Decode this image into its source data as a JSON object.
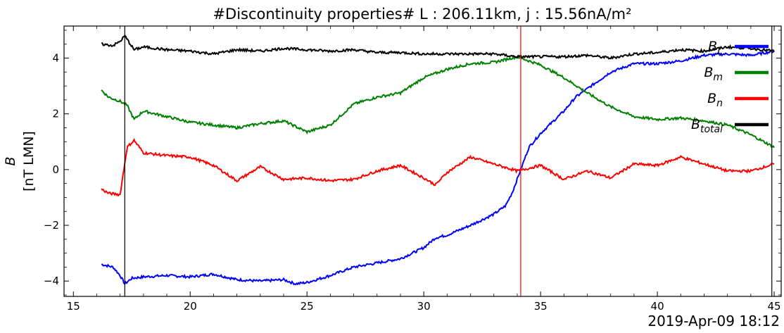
{
  "chart_data": {
    "type": "line",
    "title": "#Discontinuity properties# L : 206.11km, j : 15.56nA/m²",
    "ylabel": "B",
    "ylabel_units": "[nT LMN]",
    "corner_label": "2019-Apr-09 18:12",
    "xlim": [
      14.6,
      45.3
    ],
    "ylim": [
      -4.55,
      5.15
    ],
    "xticks": [
      15,
      20,
      25,
      30,
      35,
      40,
      45
    ],
    "yticks": [
      -4,
      -2,
      0,
      2,
      4
    ],
    "grid": false,
    "legend_position": "top-right",
    "vlines": [
      {
        "x": 17.2,
        "color": "#000000"
      },
      {
        "x": 34.15,
        "color": "#ff0000"
      },
      {
        "x": 44.9,
        "color": "#000000"
      }
    ],
    "series": [
      {
        "name": "B_L",
        "legend_main": "B",
        "legend_sub": "L",
        "color": "#0000ff",
        "x": [
          16.2,
          16.7,
          17.0,
          17.2,
          17.5,
          18.0,
          19.0,
          20.0,
          21.0,
          22.0,
          23.0,
          24.0,
          24.5,
          25.0,
          26.0,
          27.0,
          28.0,
          29.0,
          30.0,
          30.5,
          31.0,
          32.0,
          33.0,
          33.5,
          33.8,
          34.15,
          34.5,
          35.0,
          35.5,
          36.0,
          36.5,
          37.0,
          38.0,
          39.0,
          40.0,
          41.0,
          42.0,
          43.0,
          44.0,
          45.0
        ],
        "y": [
          -3.4,
          -3.5,
          -3.8,
          -4.1,
          -3.9,
          -3.85,
          -3.8,
          -3.85,
          -3.75,
          -3.95,
          -4.0,
          -3.95,
          -4.1,
          -4.05,
          -3.8,
          -3.5,
          -3.35,
          -3.2,
          -2.8,
          -2.45,
          -2.35,
          -2.0,
          -1.6,
          -1.3,
          -0.8,
          0.0,
          0.8,
          1.3,
          1.7,
          2.1,
          2.6,
          2.9,
          3.5,
          3.8,
          3.8,
          3.9,
          4.1,
          4.15,
          4.1,
          4.25
        ]
      },
      {
        "name": "B_m",
        "legend_main": "B",
        "legend_sub": "m",
        "color": "#008000",
        "x": [
          16.2,
          16.5,
          17.0,
          17.3,
          17.6,
          18.0,
          19.0,
          20.0,
          21.0,
          22.0,
          23.0,
          24.0,
          25.0,
          26.0,
          27.0,
          28.0,
          29.0,
          30.0,
          31.0,
          32.0,
          33.0,
          34.0,
          35.0,
          36.0,
          37.0,
          38.0,
          39.0,
          40.0,
          41.0,
          42.0,
          43.0,
          44.0,
          45.0
        ],
        "y": [
          2.85,
          2.6,
          2.45,
          2.3,
          1.8,
          2.1,
          1.9,
          1.7,
          1.6,
          1.5,
          1.65,
          1.75,
          1.35,
          1.6,
          2.35,
          2.6,
          2.75,
          3.3,
          3.6,
          3.8,
          3.85,
          4.05,
          3.75,
          3.3,
          2.75,
          2.25,
          1.9,
          1.8,
          1.85,
          1.75,
          1.6,
          1.25,
          0.8
        ]
      },
      {
        "name": "B_n",
        "legend_main": "B",
        "legend_sub": "n",
        "color": "#ff0000",
        "x": [
          16.2,
          16.5,
          17.0,
          17.3,
          17.6,
          18.0,
          19.0,
          20.0,
          21.0,
          22.0,
          23.0,
          24.0,
          25.0,
          26.0,
          27.0,
          28.0,
          29.0,
          30.0,
          30.5,
          31.0,
          32.0,
          33.0,
          34.0,
          35.0,
          36.0,
          37.0,
          38.0,
          39.0,
          40.0,
          41.0,
          42.0,
          43.0,
          44.0,
          45.0
        ],
        "y": [
          -0.7,
          -0.85,
          -0.9,
          0.8,
          1.05,
          0.6,
          0.5,
          0.45,
          0.15,
          -0.4,
          0.1,
          -0.35,
          -0.3,
          -0.4,
          -0.35,
          -0.05,
          0.15,
          -0.3,
          -0.55,
          -0.1,
          0.45,
          0.2,
          -0.05,
          0.15,
          -0.35,
          -0.05,
          -0.3,
          0.2,
          0.15,
          0.45,
          0.2,
          -0.05,
          -0.05,
          0.2
        ]
      },
      {
        "name": "B_total",
        "legend_main": "B",
        "legend_sub": "total",
        "color": "#000000",
        "x": [
          16.2,
          16.7,
          17.0,
          17.2,
          17.6,
          18.0,
          19.0,
          20.0,
          21.0,
          22.0,
          23.0,
          24.0,
          25.0,
          26.0,
          27.0,
          28.0,
          29.0,
          30.0,
          31.0,
          32.0,
          33.0,
          34.0,
          35.0,
          36.0,
          37.0,
          38.0,
          39.0,
          40.0,
          41.0,
          42.0,
          43.0,
          44.0,
          45.0
        ],
        "y": [
          4.5,
          4.45,
          4.6,
          4.8,
          4.3,
          4.4,
          4.3,
          4.25,
          4.15,
          4.3,
          4.25,
          4.35,
          4.3,
          4.25,
          4.3,
          4.2,
          4.2,
          4.15,
          4.15,
          4.15,
          4.15,
          4.05,
          4.05,
          4.05,
          4.1,
          4.0,
          4.15,
          4.2,
          4.3,
          4.25,
          4.4,
          4.35,
          4.25
        ]
      }
    ]
  }
}
